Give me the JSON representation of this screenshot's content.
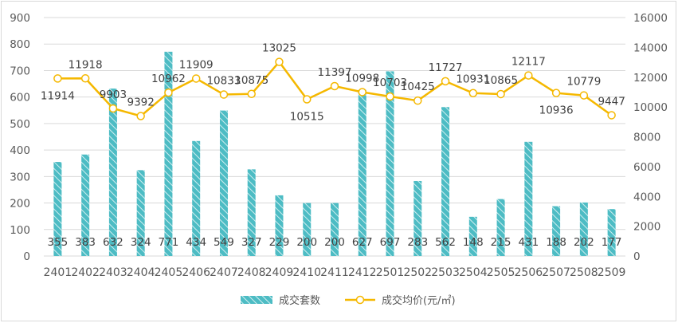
{
  "chart_data": {
    "type": "bar",
    "categories": [
      "2401",
      "2402",
      "2403",
      "2404",
      "2405",
      "2406",
      "2407",
      "2408",
      "2409",
      "2410",
      "2411",
      "2412",
      "2501",
      "2502",
      "2503",
      "2504",
      "2505",
      "2506",
      "2507",
      "2508",
      "2509"
    ],
    "series": [
      {
        "name": "成交套数",
        "type": "bar",
        "axis": "left",
        "values": [
          355,
          383,
          632,
          324,
          771,
          434,
          549,
          327,
          229,
          200,
          200,
          627,
          697,
          283,
          562,
          148,
          215,
          431,
          188,
          202,
          177
        ]
      },
      {
        "name": "成交均价(元/㎡)",
        "type": "line",
        "axis": "right",
        "values": [
          11914,
          11918,
          9903,
          9392,
          10962,
          11909,
          10833,
          10875,
          13025,
          10515,
          11397,
          10998,
          10703,
          10425,
          11727,
          10931,
          10865,
          12117,
          10936,
          10779,
          9447
        ]
      }
    ],
    "y_left": {
      "range": [
        0,
        900
      ],
      "ticks": [
        "0",
        "100",
        "200",
        "300",
        "400",
        "500",
        "600",
        "700",
        "800",
        "900"
      ]
    },
    "y_right": {
      "range": [
        0,
        16000
      ],
      "ticks": [
        "0",
        "2000",
        "4000",
        "6000",
        "8000",
        "10000",
        "12000",
        "14000",
        "16000"
      ]
    },
    "grid": true,
    "legend_position": "bottom",
    "colors": {
      "bar": "#4dbcc4",
      "bar_stripe": "#ffffff",
      "line": "#f5b800",
      "marker_fill": "#ffffff",
      "grid": "#d9d9d9"
    }
  }
}
